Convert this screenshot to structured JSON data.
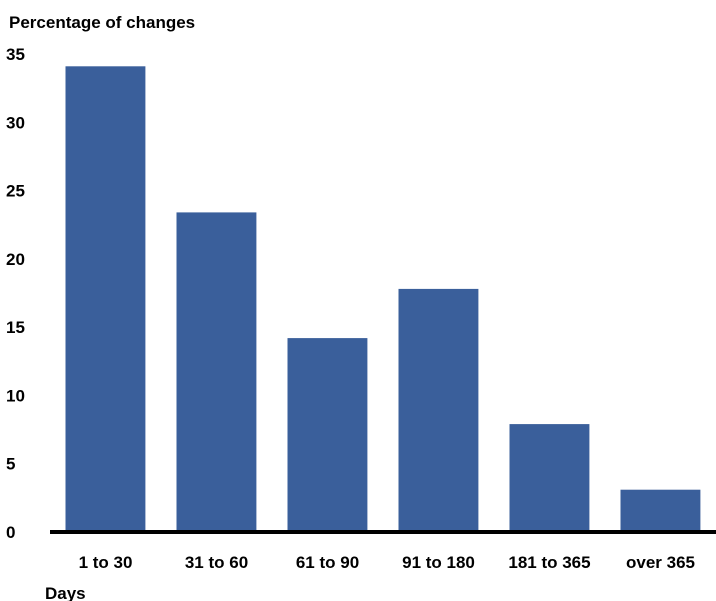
{
  "chart_data": {
    "type": "bar",
    "ylabel": "Percentage of changes",
    "xlabel": "Days",
    "categories": [
      "1 to 30",
      "31 to 60",
      "61 to 90",
      "91 to 180",
      "181 to 365",
      "over 365"
    ],
    "values": [
      34.1,
      23.4,
      14.2,
      17.8,
      7.9,
      3.1
    ],
    "ylim": [
      0,
      35
    ],
    "yticks": [
      "0",
      "5",
      "10",
      "15",
      "20",
      "25",
      "30",
      "35"
    ],
    "grid": false,
    "legend": "none",
    "bar_color": "#3a5f9b",
    "axis_color": "#000000"
  }
}
